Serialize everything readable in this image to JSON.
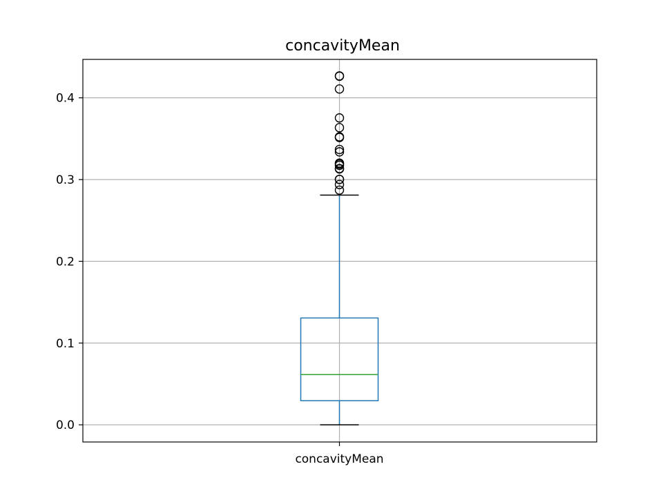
{
  "chart_data": {
    "type": "box",
    "title": "concavityMean",
    "categories": [
      "concavityMean"
    ],
    "xlabel": "",
    "ylabel": "",
    "ylim": [
      -0.021,
      0.447
    ],
    "yticks": [
      "0.0",
      "0.1",
      "0.2",
      "0.3",
      "0.4"
    ],
    "grid": true,
    "series": [
      {
        "category": "concavityMean",
        "whisker_low": 0.0,
        "q1": 0.0295,
        "median": 0.0615,
        "q3": 0.1307,
        "whisker_high": 0.281,
        "outliers": [
          0.2871,
          0.2939,
          0.3001,
          0.3003,
          0.313,
          0.3135,
          0.3174,
          0.3189,
          0.3201,
          0.3339,
          0.3368,
          0.3514,
          0.3523,
          0.3635,
          0.3754,
          0.4108,
          0.4264,
          0.4268
        ]
      }
    ],
    "colors": {
      "box": "#1f77b4",
      "median": "#2ca02c",
      "whisker_cap": "#000000",
      "outlier": "#000000",
      "grid": "#b0b0b0",
      "axes": "#000000"
    }
  }
}
